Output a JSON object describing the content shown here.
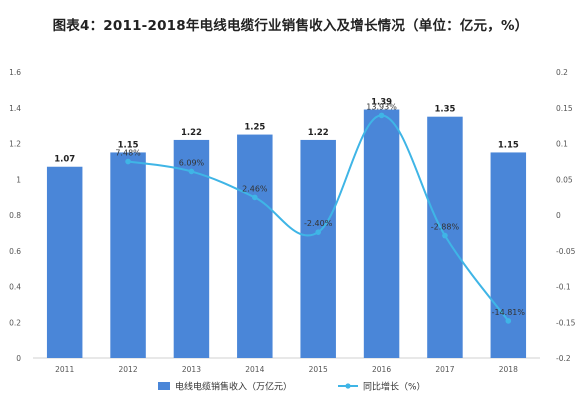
{
  "title": "图表4：2011-2018年电线电缆行业销售收入及增长情况（单位：亿元，%）",
  "chart_data": {
    "type": "bar",
    "categories": [
      "2011",
      "2012",
      "2013",
      "2014",
      "2015",
      "2016",
      "2017",
      "2018"
    ],
    "series": [
      {
        "name": "电线电缆销售收入（万亿元）",
        "type": "bar",
        "axis": "left",
        "values": [
          1.07,
          1.15,
          1.22,
          1.25,
          1.22,
          1.39,
          1.35,
          1.15
        ],
        "labels": [
          "1.07",
          "1.15",
          "1.22",
          "1.25",
          "1.22",
          "1.39",
          "1.35",
          "1.15"
        ],
        "color": "#4a86d8"
      },
      {
        "name": "同比增长（%）",
        "type": "line",
        "axis": "right",
        "values": [
          null,
          0.0748,
          0.0609,
          0.0246,
          -0.024,
          0.1393,
          -0.0288,
          -0.1481
        ],
        "labels": [
          "",
          "7.48%",
          "6.09%",
          "2.46%",
          "-2.40%",
          "13.93%",
          "-2.88%",
          "-14.81%"
        ],
        "color": "#3fb5e6"
      }
    ],
    "y_left": {
      "min": 0,
      "max": 1.6,
      "ticks": [
        "0",
        "0.2",
        "0.4",
        "0.6",
        "0.8",
        "1",
        "1.2",
        "1.4",
        "1.6"
      ]
    },
    "y_right": {
      "min": -0.2,
      "max": 0.2,
      "ticks": [
        "-0.2",
        "-0.15",
        "-0.1",
        "-0.05",
        "0",
        "0.05",
        "0.1",
        "0.15",
        "0.2"
      ]
    },
    "legend": "bottom",
    "grid": false
  }
}
